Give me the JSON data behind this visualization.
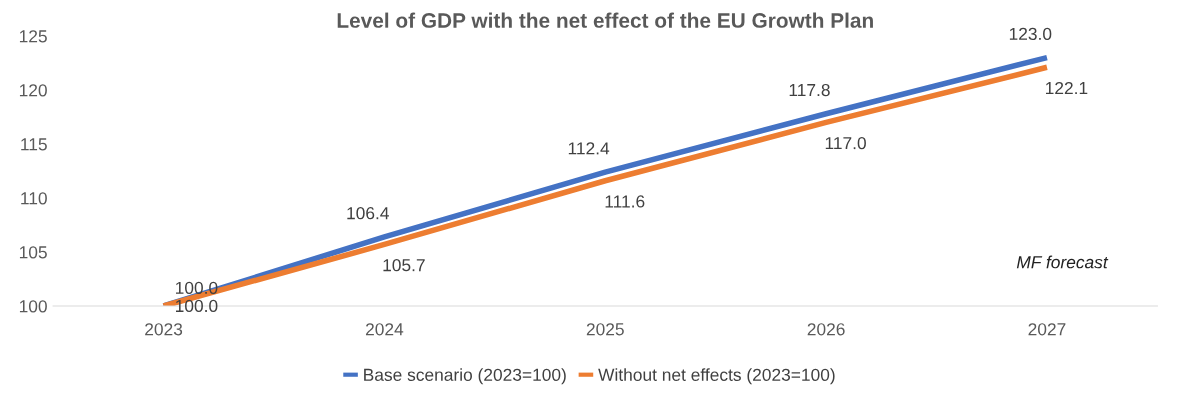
{
  "chart_data": {
    "type": "line",
    "title": "Level of GDP with the net effect of the EU Growth Plan",
    "categories": [
      "2023",
      "2024",
      "2025",
      "2026",
      "2027"
    ],
    "series": [
      {
        "name": "Base scenario (2023=100)",
        "color": "#4472c4",
        "values": [
          100.0,
          106.4,
          112.4,
          117.8,
          123.0
        ],
        "value_labels": [
          "100.0",
          "106.4",
          "112.4",
          "117.8",
          "123.0"
        ]
      },
      {
        "name": "Without net effects (2023=100)",
        "color": "#ed7d31",
        "values": [
          100.0,
          105.7,
          111.6,
          117.0,
          122.1
        ],
        "value_labels": [
          "100.0",
          "105.7",
          "111.6",
          "117.0",
          "122.1"
        ]
      }
    ],
    "ylim": [
      100,
      125
    ],
    "yticks": [
      100,
      105,
      110,
      115,
      120,
      125
    ],
    "annotations": [
      "MF forecast"
    ],
    "grid": false,
    "legend": "bottom",
    "marker": "none",
    "line_style": "solid"
  }
}
